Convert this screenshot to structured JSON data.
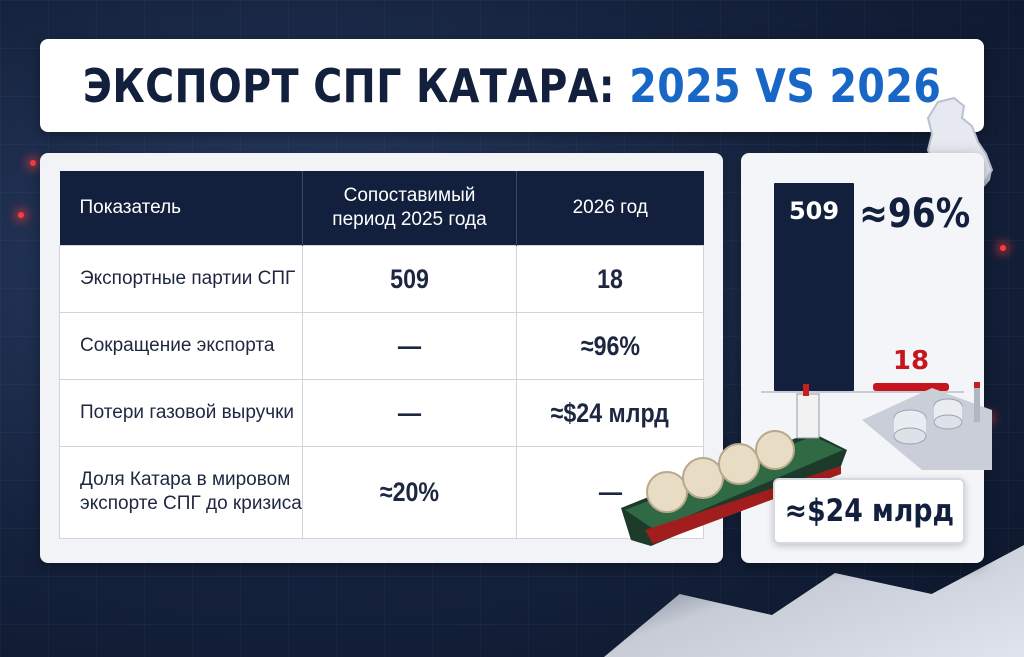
{
  "title": {
    "main": "ЭКСПОРТ СПГ КАТАРА:",
    "years": "2025 VS 2026"
  },
  "table": {
    "headers": [
      "Показатель",
      "Сопоставимый период 2025 года",
      "2026 год"
    ],
    "rows": [
      {
        "label": "Экспортные партии СПГ",
        "v2025": "509",
        "v2026": "18"
      },
      {
        "label": "Сокращение экспорта",
        "v2025": "—",
        "v2026": "≈96%"
      },
      {
        "label": "Потери газовой выручки",
        "v2025": "—",
        "v2026": "≈$24 млрд"
      },
      {
        "label": "Доля Катара в мировом экспорте СПГ до кризиса",
        "v2025": "≈20%",
        "v2026": "—"
      }
    ]
  },
  "chart_data": {
    "type": "bar",
    "categories": [
      "",
      ""
    ],
    "values": [
      509,
      18
    ],
    "title": "",
    "xlabel": "",
    "ylabel": "",
    "ylim": [
      0,
      509
    ],
    "annotations": [
      "≈96%",
      "≈$24 млрд"
    ]
  },
  "colors": {
    "navy": "#13203d",
    "red": "#c4161c",
    "blue": "#1866c6"
  },
  "icons": [
    "qatar-map-icon",
    "lng-tanker-ship-icon",
    "lng-plant-icon"
  ]
}
